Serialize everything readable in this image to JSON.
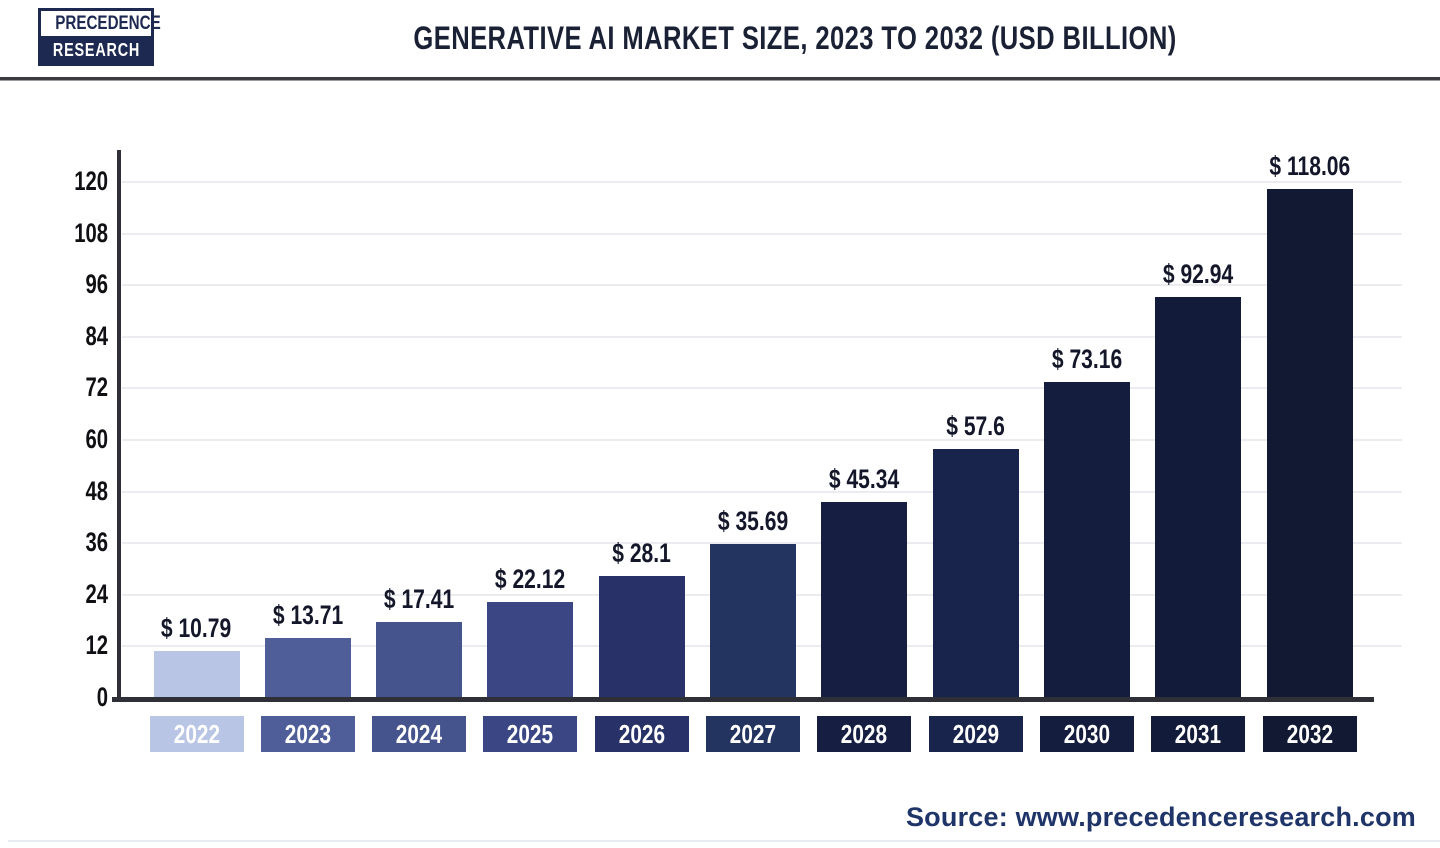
{
  "header": {
    "logo_line1": "PRECEDENCE",
    "logo_line2": "RESEARCH",
    "title": "GENERATIVE AI MARKET SIZE, 2023 TO 2032 (USD BILLION)"
  },
  "chart_data": {
    "type": "bar",
    "title": "Generative AI Market Size, 2023 to 2032 (USD Billion)",
    "unit": "USD Billion",
    "categories": [
      "2022",
      "2023",
      "2024",
      "2025",
      "2026",
      "2027",
      "2028",
      "2029",
      "2030",
      "2031",
      "2032"
    ],
    "values": [
      10.79,
      13.71,
      17.41,
      22.12,
      28.1,
      35.69,
      45.34,
      57.6,
      73.16,
      92.94,
      118.06
    ],
    "value_labels": [
      "$ 10.79",
      "$ 13.71",
      "$ 17.41",
      "$ 22.12",
      "$ 28.1",
      "$ 35.69",
      "$ 45.34",
      "$ 57.6",
      "$ 73.16",
      "$ 92.94",
      "$ 118.06"
    ],
    "bar_colors": [
      "#b9c5e4",
      "#4f5e99",
      "#46548e",
      "#3a4784",
      "#293268",
      "#22345f",
      "#161f42",
      "#19244c",
      "#141d3e",
      "#131b3a",
      "#111933"
    ],
    "y_ticks": [
      0,
      12,
      24,
      36,
      48,
      60,
      72,
      84,
      96,
      108,
      120
    ],
    "ylim": [
      0,
      126
    ],
    "xlabel": "",
    "ylabel": "",
    "grid": "horizontal",
    "legend": "none"
  },
  "footer": {
    "source": "Source: www.precedenceresearch.com"
  },
  "colors": {
    "brand_navy": "#1d2951",
    "title_text": "#1a2134",
    "axis_line": "#2e2f37",
    "gridline": "#ececf0",
    "value_label_text": "#14172a",
    "source_text": "#1f3468"
  }
}
